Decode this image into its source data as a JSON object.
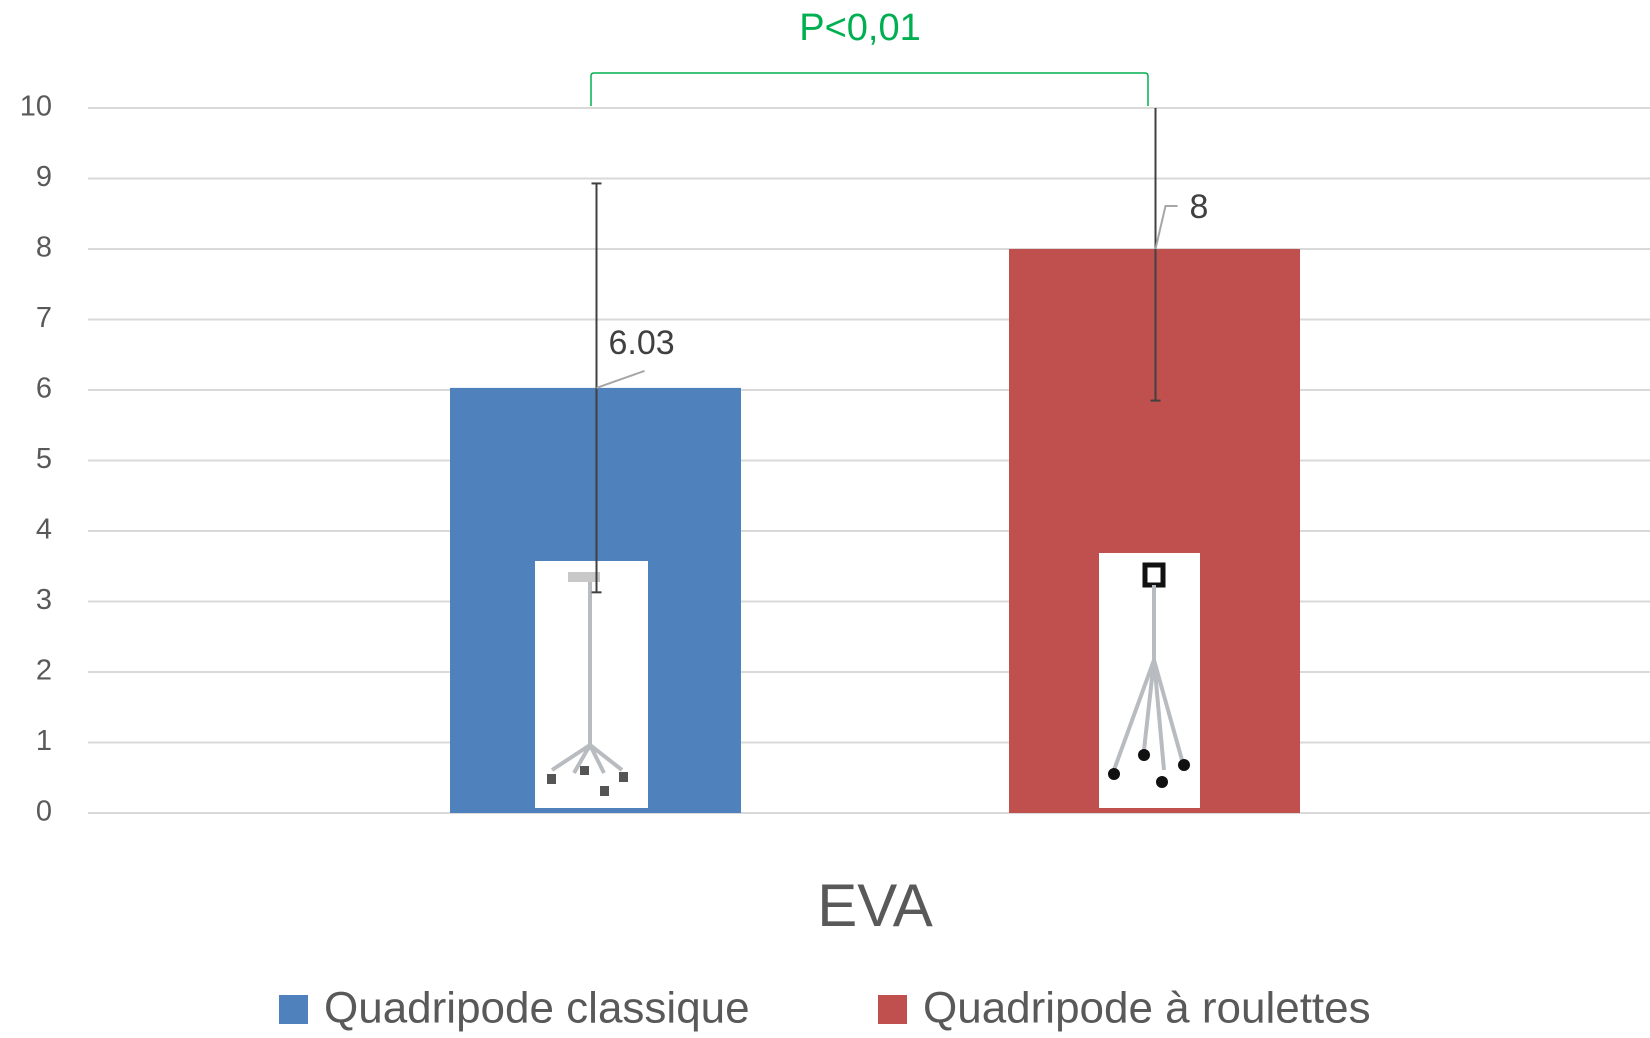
{
  "chart_data": {
    "type": "bar",
    "categories": [
      "EVA"
    ],
    "series": [
      {
        "name": "Quadripode classique",
        "color": "#4f81bd",
        "values": [
          6.03
        ],
        "errors": [
          2.9
        ]
      },
      {
        "name": "Quadripode à roulettes",
        "color": "#c0504d",
        "values": [
          8
        ],
        "errors": [
          2.15
        ]
      }
    ],
    "annotation": "P<0,01",
    "ylim": [
      0,
      10
    ],
    "yticks": [
      0,
      1,
      2,
      3,
      4,
      5,
      6,
      7,
      8,
      9,
      10
    ],
    "grid": true,
    "legend": "bottom"
  }
}
